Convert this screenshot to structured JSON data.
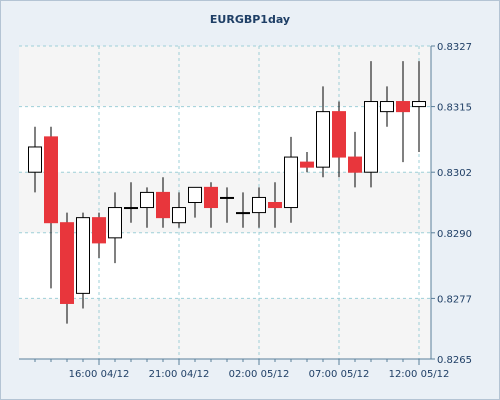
{
  "chart_data": {
    "type": "candlestick",
    "title": "EURGBP1day",
    "x_tick_labels": [
      "16:00 04/12",
      "21:00 04/12",
      "02:00 05/12",
      "07:00 05/12",
      "12:00 05/12"
    ],
    "y_tick_labels": [
      "0.8265",
      "0.8277",
      "0.8290",
      "0.8302",
      "0.8315",
      "0.8327"
    ],
    "y_ticks": [
      0.8265,
      0.8277,
      0.829,
      0.8302,
      0.8315,
      0.8327
    ],
    "ylim": [
      0.8265,
      0.8327
    ],
    "grid": true,
    "candles": [
      {
        "open": 0.8302,
        "high": 0.8311,
        "low": 0.8298,
        "close": 0.8307
      },
      {
        "open": 0.8309,
        "high": 0.8311,
        "low": 0.8279,
        "close": 0.8292
      },
      {
        "open": 0.8292,
        "high": 0.8294,
        "low": 0.8272,
        "close": 0.8276
      },
      {
        "open": 0.8278,
        "high": 0.8294,
        "low": 0.8275,
        "close": 0.8293
      },
      {
        "open": 0.8293,
        "high": 0.8294,
        "low": 0.8285,
        "close": 0.8288
      },
      {
        "open": 0.8289,
        "high": 0.8298,
        "low": 0.8284,
        "close": 0.8295
      },
      {
        "open": 0.8295,
        "high": 0.83,
        "low": 0.8292,
        "close": 0.8295
      },
      {
        "open": 0.8295,
        "high": 0.8299,
        "low": 0.8291,
        "close": 0.8298
      },
      {
        "open": 0.8298,
        "high": 0.8301,
        "low": 0.8291,
        "close": 0.8293
      },
      {
        "open": 0.8292,
        "high": 0.8298,
        "low": 0.8291,
        "close": 0.8295
      },
      {
        "open": 0.8296,
        "high": 0.8299,
        "low": 0.8293,
        "close": 0.8299
      },
      {
        "open": 0.8299,
        "high": 0.83,
        "low": 0.8291,
        "close": 0.8295
      },
      {
        "open": 0.8297,
        "high": 0.8299,
        "low": 0.8292,
        "close": 0.8297
      },
      {
        "open": 0.8294,
        "high": 0.8298,
        "low": 0.8291,
        "close": 0.8294
      },
      {
        "open": 0.8294,
        "high": 0.8299,
        "low": 0.8291,
        "close": 0.8297
      },
      {
        "open": 0.8296,
        "high": 0.83,
        "low": 0.8291,
        "close": 0.8295
      },
      {
        "open": 0.8295,
        "high": 0.8309,
        "low": 0.8292,
        "close": 0.8305
      },
      {
        "open": 0.8304,
        "high": 0.8306,
        "low": 0.8302,
        "close": 0.8303
      },
      {
        "open": 0.8303,
        "high": 0.8319,
        "low": 0.8301,
        "close": 0.8314
      },
      {
        "open": 0.8314,
        "high": 0.8316,
        "low": 0.8301,
        "close": 0.8305
      },
      {
        "open": 0.8305,
        "high": 0.831,
        "low": 0.8299,
        "close": 0.8302
      },
      {
        "open": 0.8302,
        "high": 0.8324,
        "low": 0.8299,
        "close": 0.8316
      },
      {
        "open": 0.8314,
        "high": 0.8319,
        "low": 0.8311,
        "close": 0.8316
      },
      {
        "open": 0.8316,
        "high": 0.8324,
        "low": 0.8304,
        "close": 0.8314
      },
      {
        "open": 0.8315,
        "high": 0.8324,
        "low": 0.8306,
        "close": 0.8316
      }
    ]
  },
  "colors": {
    "frame_bg": "#eaf0f6",
    "plot_bg": "#ffffff",
    "band_bg": "#f5f5f5",
    "grid": "#9ed0d8",
    "axis": "#5a7f9a",
    "text": "#1f3f66",
    "bullish_fill": "#ffffff",
    "bearish_fill": "#e8363c",
    "candle_outline": "#000000"
  }
}
